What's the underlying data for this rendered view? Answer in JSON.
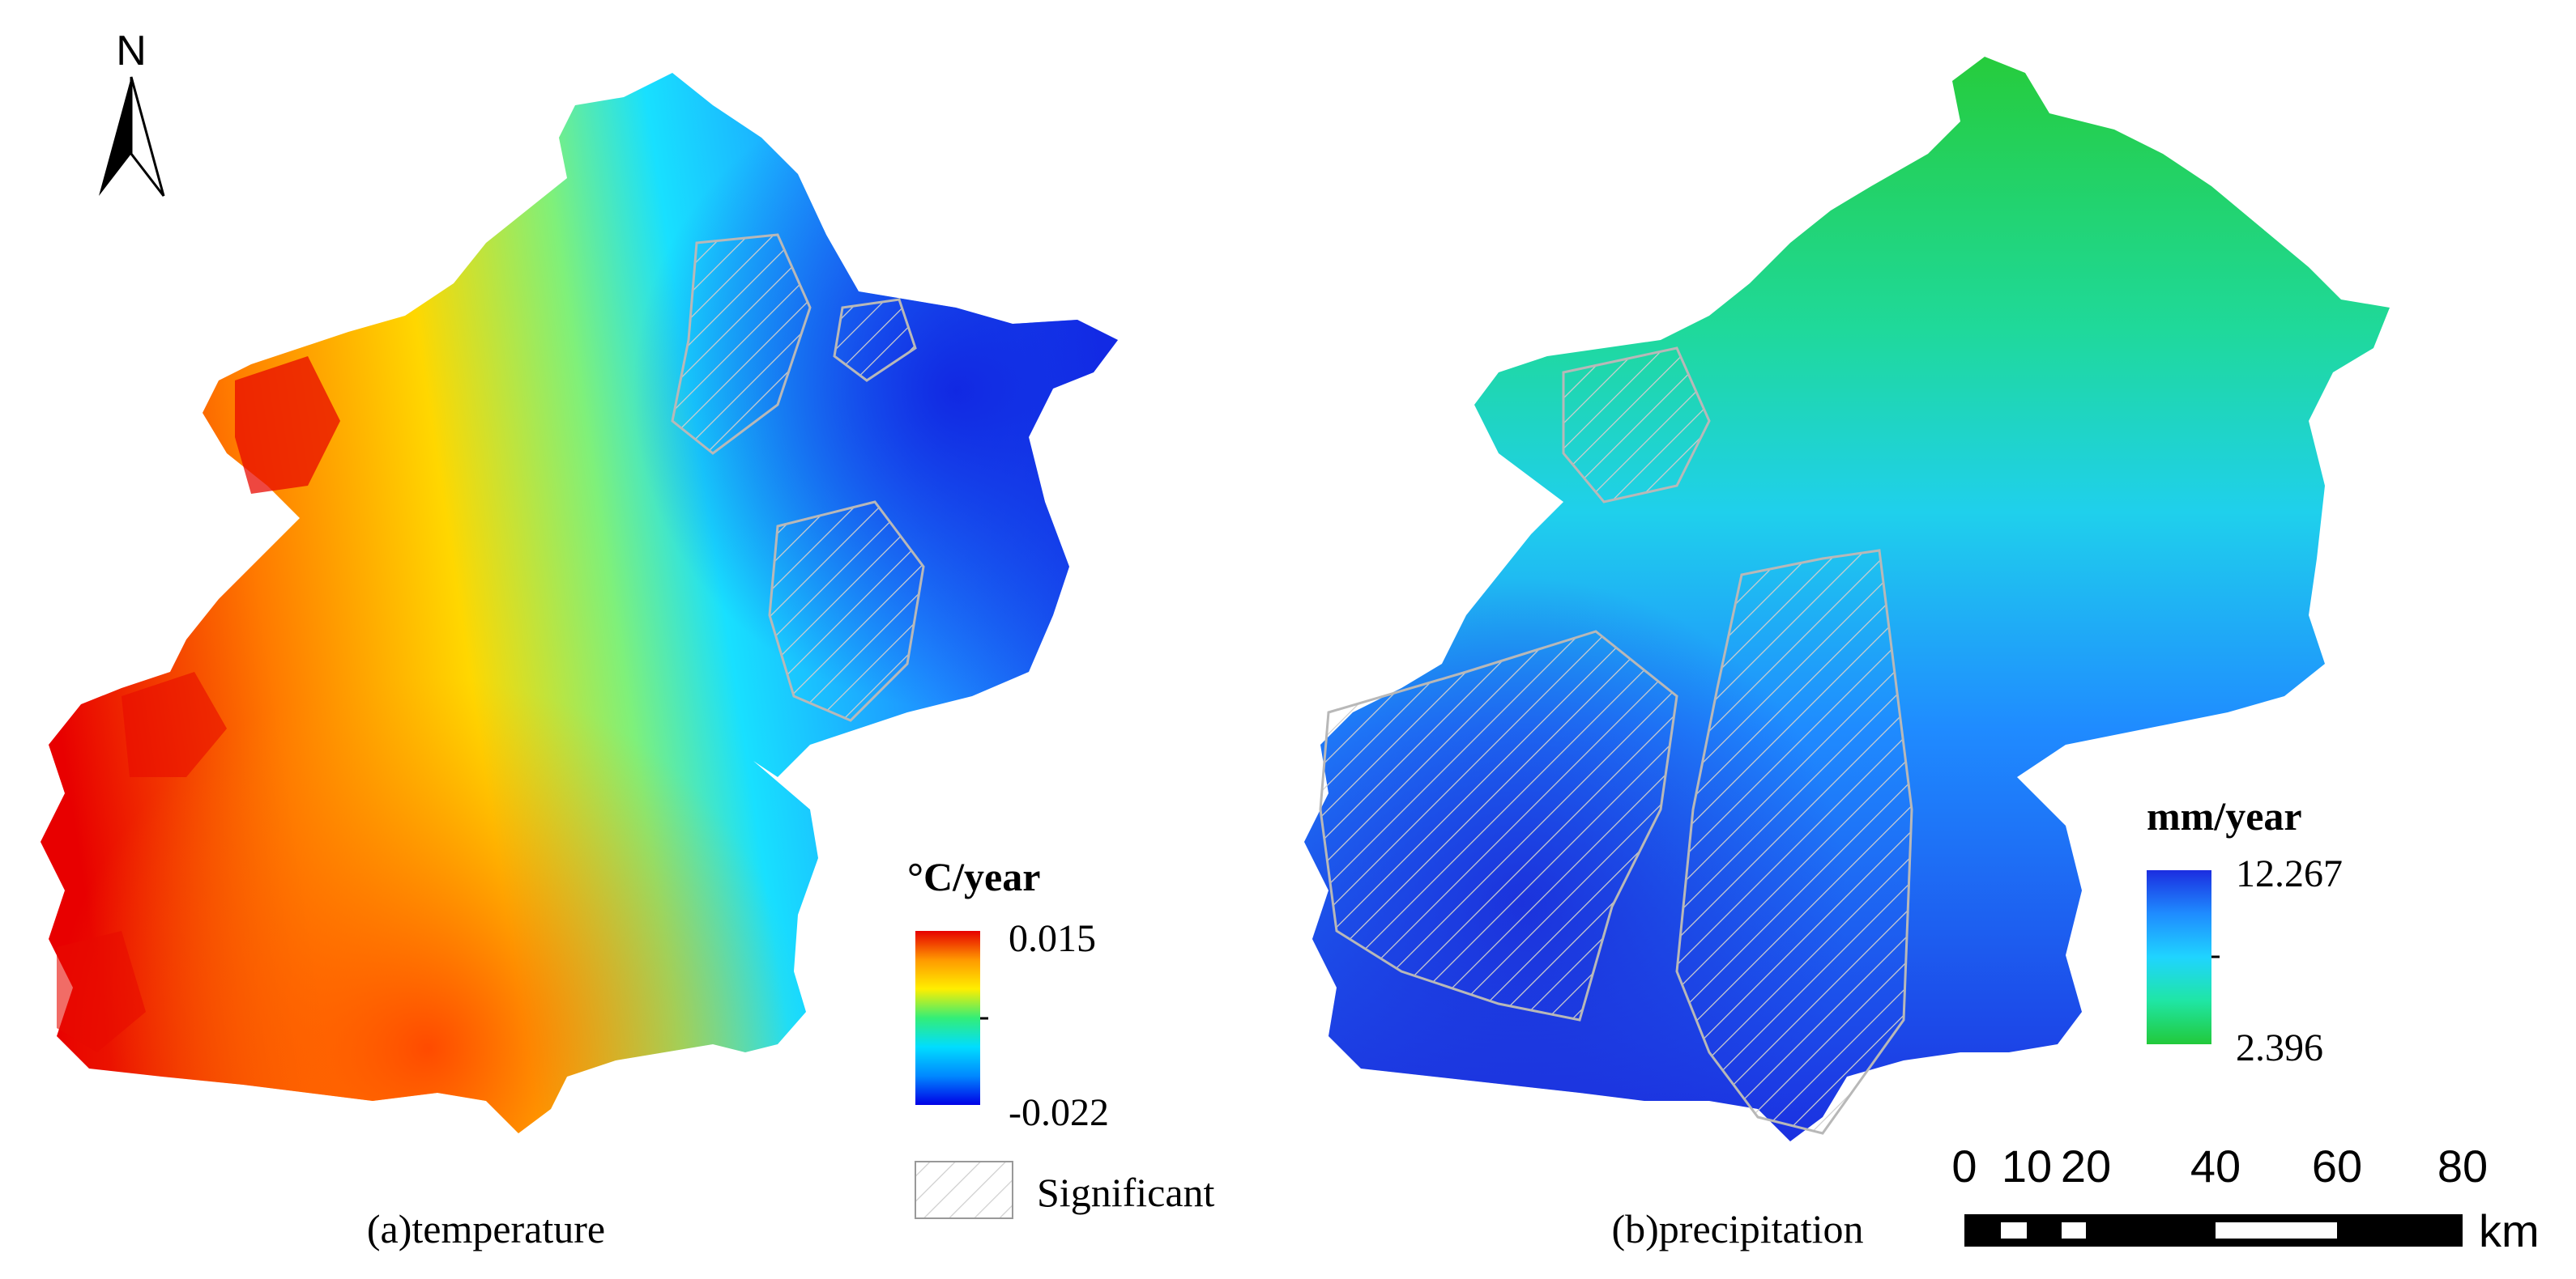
{
  "north_arrow": {
    "label": "N"
  },
  "panel_a": {
    "caption": "(a)temperature",
    "legend_title": "°C/year",
    "legend_max": "0.015",
    "legend_min": "-0.022",
    "ramp": [
      "#e60000",
      "#ff9900",
      "#ffee00",
      "#33ee77",
      "#00ddff",
      "#0088ff",
      "#0000e6"
    ]
  },
  "panel_b": {
    "caption": "(b)precipitation",
    "legend_title": "mm/year",
    "legend_max": "12.267",
    "legend_min": "2.396",
    "ramp": [
      "#1b2de0",
      "#1f8cff",
      "#1fd4ff",
      "#1fe6a5",
      "#22c93a"
    ]
  },
  "significance_legend": {
    "label": "Significant"
  },
  "scale_bar": {
    "ticks": [
      "0",
      "10",
      "20",
      "40",
      "60",
      "80"
    ],
    "unit": "km"
  }
}
